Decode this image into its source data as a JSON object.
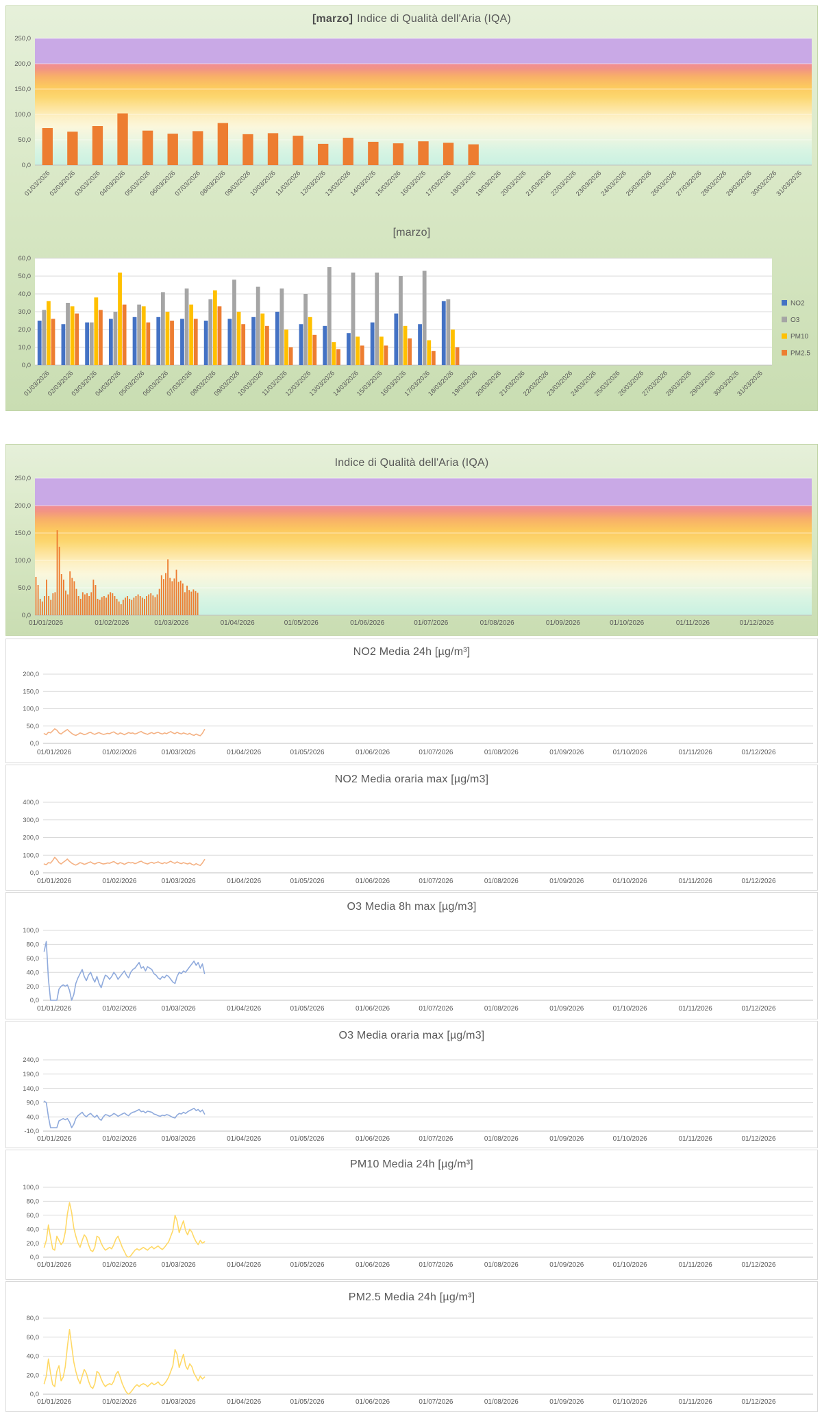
{
  "months": [
    "01/01/2026",
    "01/02/2026",
    "01/03/2026",
    "01/04/2026",
    "01/05/2026",
    "01/06/2026",
    "01/07/2026",
    "01/08/2026",
    "01/09/2026",
    "01/10/2026",
    "01/11/2026",
    "01/12/2026"
  ],
  "iqa_gradient_stops": [
    [
      "0%",
      "#c9a9e6"
    ],
    [
      "19.7%",
      "#c9a9e6"
    ],
    [
      "20.3%",
      "#f08d95"
    ],
    [
      "24%",
      "#f29384"
    ],
    [
      "30%",
      "#f8b068"
    ],
    [
      "38%",
      "#fcc95f"
    ],
    [
      "46%",
      "#fcd66e"
    ],
    [
      "54%",
      "#fde39a"
    ],
    [
      "62%",
      "#fdf0c4"
    ],
    [
      "70%",
      "#fbf7dc"
    ],
    [
      "78%",
      "#eef6e0"
    ],
    [
      "88%",
      "#d9f4e3"
    ],
    [
      "100%",
      "#c9f1e1"
    ]
  ],
  "chart_data": [
    {
      "id": "iqa_marzo",
      "type": "bar",
      "title_prefix": "[marzo]",
      "title": "Indice di Qualità dell'Aria (IQA)",
      "categories": [
        "01/03/2026",
        "02/03/2026",
        "03/03/2026",
        "04/03/2026",
        "05/03/2026",
        "06/03/2026",
        "07/03/2026",
        "08/03/2026",
        "09/03/2026",
        "10/03/2026",
        "11/03/2026",
        "12/03/2026",
        "13/03/2026",
        "14/03/2026",
        "15/03/2026",
        "16/03/2026",
        "17/03/2026",
        "18/03/2026",
        "19/03/2026",
        "20/03/2026",
        "21/03/2026",
        "22/03/2026",
        "23/03/2026",
        "24/03/2026",
        "25/03/2026",
        "26/03/2026",
        "27/03/2026",
        "28/03/2026",
        "29/03/2026",
        "30/03/2026",
        "31/03/2026"
      ],
      "values": [
        73,
        66,
        77,
        102,
        68,
        62,
        67,
        83,
        61,
        63,
        58,
        42,
        54,
        46,
        43,
        47,
        44,
        41
      ],
      "bar_color": "#ED7D31",
      "background": "iqa-gradient",
      "ylim": [
        0,
        250
      ],
      "yticks": [
        {
          "v": 0,
          "label": "0,0"
        },
        {
          "v": 50,
          "label": "50,0"
        },
        {
          "v": 100,
          "label": "100,0"
        },
        {
          "v": 150,
          "label": "150,0"
        },
        {
          "v": 200,
          "label": "200,0"
        },
        {
          "v": 250,
          "label": "250,0"
        }
      ],
      "xlabel_mode": "rotated"
    },
    {
      "id": "marzo_groups",
      "type": "grouped-bar",
      "title": "[marzo]",
      "categories": [
        "01/03/2026",
        "02/03/2026",
        "03/03/2026",
        "04/03/2026",
        "05/03/2026",
        "06/03/2026",
        "07/03/2026",
        "08/03/2026",
        "09/03/2026",
        "10/03/2026",
        "11/03/2026",
        "12/03/2026",
        "13/03/2026",
        "14/03/2026",
        "15/03/2026",
        "16/03/2026",
        "17/03/2026",
        "18/03/2026",
        "19/03/2026",
        "20/03/2026",
        "21/03/2026",
        "22/03/2026",
        "23/03/2026",
        "24/03/2026",
        "25/03/2026",
        "26/03/2026",
        "27/03/2026",
        "28/03/2026",
        "29/03/2026",
        "30/03/2026",
        "31/03/2026"
      ],
      "series": [
        {
          "name": "NO2",
          "color": "#4472C4",
          "values": [
            25,
            23,
            24,
            26,
            27,
            27,
            26,
            25,
            26,
            27,
            30,
            23,
            22,
            18,
            24,
            29,
            23,
            36
          ]
        },
        {
          "name": "O3",
          "color": "#A5A5A5",
          "values": [
            31,
            35,
            24,
            30,
            34,
            41,
            43,
            37,
            48,
            44,
            43,
            40,
            55,
            52,
            52,
            50,
            53,
            37
          ]
        },
        {
          "name": "PM10",
          "color": "#FFC000",
          "values": [
            36,
            33,
            38,
            52,
            33,
            30,
            34,
            42,
            30,
            29,
            20,
            27,
            13,
            16,
            16,
            22,
            14,
            20
          ]
        },
        {
          "name": "PM2.5",
          "color": "#ED7D31",
          "values": [
            26,
            29,
            31,
            34,
            24,
            25,
            26,
            33,
            23,
            22,
            10,
            17,
            9,
            11,
            11,
            15,
            8,
            10
          ]
        }
      ],
      "background": "white",
      "legend_position": "right",
      "ylim": [
        0,
        60
      ],
      "yticks": [
        {
          "v": 0,
          "label": "0,0"
        },
        {
          "v": 10,
          "label": "10,0"
        },
        {
          "v": 20,
          "label": "20,0"
        },
        {
          "v": 30,
          "label": "30,0"
        },
        {
          "v": 40,
          "label": "40,0"
        },
        {
          "v": 50,
          "label": "50,0"
        },
        {
          "v": 60,
          "label": "60,0"
        }
      ],
      "xlabel_mode": "rotated"
    },
    {
      "id": "iqa_year",
      "type": "daily-bar",
      "title": "Indice di Qualità dell'Aria (IQA)",
      "bar_color": "#ED7D31",
      "background": "iqa-gradient",
      "days_in_axis": 365,
      "values": [
        70,
        55,
        30,
        25,
        35,
        65,
        35,
        28,
        40,
        42,
        155,
        125,
        75,
        65,
        45,
        38,
        80,
        68,
        62,
        48,
        35,
        30,
        42,
        38,
        40,
        35,
        42,
        65,
        55,
        30,
        28,
        33,
        35,
        32,
        38,
        42,
        40,
        35,
        30,
        25,
        20,
        28,
        32,
        35,
        30,
        28,
        32,
        35,
        38,
        35,
        32,
        30,
        35,
        38,
        40,
        36,
        33,
        38,
        48,
        73,
        66,
        77,
        102,
        68,
        62,
        67,
        83,
        61,
        63,
        58,
        42,
        54,
        46,
        43,
        47,
        44,
        41
      ],
      "ylim": [
        0,
        250
      ],
      "yticks": [
        {
          "v": 0,
          "label": "0,0"
        },
        {
          "v": 50,
          "label": "50,0"
        },
        {
          "v": 100,
          "label": "100,0"
        },
        {
          "v": 150,
          "label": "150,0"
        },
        {
          "v": 200,
          "label": "200,0"
        },
        {
          "v": 250,
          "label": "250,0"
        }
      ],
      "xlabel_mode": "monthly"
    },
    {
      "id": "no2_24h",
      "type": "line",
      "title": "NO2 Media 24h [µg/m³]",
      "line_color": "#F4B183",
      "background": "plain",
      "days_in_axis": 365,
      "values": [
        28,
        25,
        32,
        30,
        36,
        42,
        38,
        30,
        27,
        32,
        36,
        40,
        34,
        29,
        25,
        23,
        26,
        30,
        28,
        25,
        27,
        30,
        32,
        28,
        26,
        29,
        31,
        28,
        26,
        27,
        29,
        28,
        31,
        33,
        29,
        26,
        30,
        28,
        25,
        28,
        31,
        29,
        30,
        27,
        29,
        32,
        34,
        30,
        28,
        26,
        29,
        31,
        28,
        30,
        32,
        29,
        27,
        30,
        28,
        31,
        34,
        30,
        28,
        32,
        29,
        27,
        30,
        28,
        26,
        29,
        25,
        23,
        27,
        24,
        22,
        29,
        40
      ],
      "ylim": [
        0,
        200
      ],
      "yticks": [
        {
          "v": 0,
          "label": "0,0"
        },
        {
          "v": 50,
          "label": "50,0"
        },
        {
          "v": 100,
          "label": "100,0"
        },
        {
          "v": 150,
          "label": "150,0"
        },
        {
          "v": 200,
          "label": "200,0"
        }
      ],
      "xlabel_mode": "monthly"
    },
    {
      "id": "no2_max",
      "type": "line",
      "title": "NO2 Media oraria max [µg/m3]",
      "line_color": "#F4B183",
      "background": "plain",
      "days_in_axis": 365,
      "values": [
        50,
        46,
        58,
        55,
        70,
        88,
        75,
        58,
        50,
        60,
        68,
        78,
        65,
        55,
        48,
        44,
        50,
        58,
        54,
        48,
        52,
        58,
        62,
        54,
        50,
        56,
        60,
        54,
        50,
        52,
        56,
        54,
        60,
        64,
        56,
        50,
        58,
        54,
        48,
        54,
        60,
        56,
        58,
        52,
        56,
        62,
        66,
        58,
        54,
        50,
        56,
        60,
        54,
        58,
        62,
        56,
        52,
        58,
        54,
        60,
        66,
        58,
        54,
        62,
        56,
        52,
        58,
        54,
        50,
        56,
        48,
        44,
        52,
        46,
        42,
        56,
        75
      ],
      "ylim": [
        0,
        400
      ],
      "yticks": [
        {
          "v": 0,
          "label": "0,0"
        },
        {
          "v": 100,
          "label": "100,0"
        },
        {
          "v": 200,
          "label": "200,0"
        },
        {
          "v": 300,
          "label": "300,0"
        },
        {
          "v": 400,
          "label": "400,0"
        }
      ],
      "xlabel_mode": "monthly"
    },
    {
      "id": "o3_8h",
      "type": "line",
      "title": "O3 Media 8h max [µg/m3]",
      "line_color": "#8FAADC",
      "background": "plain",
      "days_in_axis": 365,
      "values": [
        70,
        84,
        30,
        0,
        0,
        0,
        0,
        16,
        20,
        22,
        20,
        22,
        14,
        0,
        8,
        24,
        32,
        38,
        44,
        34,
        28,
        36,
        40,
        32,
        26,
        34,
        24,
        18,
        28,
        36,
        34,
        30,
        34,
        40,
        36,
        30,
        34,
        38,
        42,
        36,
        32,
        40,
        44,
        46,
        50,
        54,
        46,
        48,
        42,
        48,
        46,
        44,
        38,
        36,
        32,
        30,
        34,
        32,
        36,
        34,
        30,
        26,
        24,
        34,
        40,
        38,
        42,
        40,
        44,
        48,
        52,
        56,
        50,
        54,
        46,
        52,
        38
      ],
      "ylim": [
        0,
        100
      ],
      "yticks": [
        {
          "v": 0,
          "label": "0,0"
        },
        {
          "v": 20,
          "label": "20,0"
        },
        {
          "v": 40,
          "label": "40,0"
        },
        {
          "v": 60,
          "label": "60,0"
        },
        {
          "v": 80,
          "label": "80,0"
        },
        {
          "v": 100,
          "label": "100,0"
        }
      ],
      "xlabel_mode": "monthly"
    },
    {
      "id": "o3_max",
      "type": "line",
      "title": "O3 Media oraria max [µg/m3]",
      "line_color": "#8FAADC",
      "background": "plain",
      "days_in_axis": 365,
      "values": [
        95,
        90,
        40,
        2,
        2,
        2,
        2,
        26,
        30,
        34,
        30,
        34,
        22,
        2,
        14,
        34,
        44,
        50,
        56,
        46,
        40,
        48,
        52,
        44,
        38,
        46,
        34,
        28,
        40,
        48,
        46,
        42,
        46,
        52,
        48,
        42,
        46,
        50,
        54,
        48,
        44,
        52,
        56,
        58,
        62,
        66,
        58,
        60,
        54,
        60,
        58,
        56,
        50,
        48,
        44,
        42,
        46,
        44,
        48,
        46,
        42,
        38,
        36,
        46,
        52,
        50,
        56,
        52,
        58,
        62,
        66,
        70,
        62,
        66,
        58,
        64,
        50
      ],
      "ylim": [
        -10,
        240
      ],
      "yticks": [
        {
          "v": -10,
          "label": "-10,0"
        },
        {
          "v": 40,
          "label": "40,0"
        },
        {
          "v": 90,
          "label": "90,0"
        },
        {
          "v": 140,
          "label": "140,0"
        },
        {
          "v": 190,
          "label": "190,0"
        },
        {
          "v": 240,
          "label": "240,0"
        }
      ],
      "xlabel_mode": "monthly"
    },
    {
      "id": "pm10_24h",
      "type": "line",
      "title": "PM10 Media 24h [µg/m³]",
      "line_color": "#FFD966",
      "background": "plain",
      "days_in_axis": 365,
      "values": [
        14,
        24,
        46,
        28,
        12,
        10,
        30,
        24,
        18,
        22,
        36,
        62,
        78,
        64,
        42,
        30,
        20,
        14,
        24,
        32,
        28,
        18,
        10,
        8,
        14,
        30,
        28,
        20,
        14,
        10,
        12,
        14,
        12,
        18,
        26,
        30,
        22,
        14,
        8,
        2,
        0,
        2,
        6,
        10,
        12,
        10,
        12,
        14,
        12,
        10,
        13,
        15,
        12,
        14,
        16,
        13,
        11,
        14,
        18,
        22,
        30,
        38,
        60,
        52,
        35,
        44,
        52,
        38,
        32,
        40,
        36,
        28,
        22,
        18,
        24,
        20,
        22
      ],
      "ylim": [
        0,
        100
      ],
      "yticks": [
        {
          "v": 0,
          "label": "0,0"
        },
        {
          "v": 20,
          "label": "20,0"
        },
        {
          "v": 40,
          "label": "40,0"
        },
        {
          "v": 60,
          "label": "60,0"
        },
        {
          "v": 80,
          "label": "80,0"
        },
        {
          "v": 100,
          "label": "100,0"
        }
      ],
      "xlabel_mode": "monthly"
    },
    {
      "id": "pm25_24h",
      "type": "line",
      "title": "PM2.5 Media 24h [µg/m³]",
      "line_color": "#FFD966",
      "background": "plain",
      "days_in_axis": 365,
      "values": [
        11,
        19,
        37,
        22,
        10,
        8,
        24,
        30,
        14,
        18,
        29,
        50,
        68,
        51,
        34,
        24,
        16,
        11,
        19,
        26,
        22,
        14,
        8,
        6,
        11,
        24,
        22,
        16,
        11,
        8,
        10,
        11,
        10,
        14,
        21,
        24,
        18,
        11,
        6,
        2,
        0,
        2,
        5,
        8,
        10,
        8,
        10,
        11,
        10,
        8,
        10,
        12,
        10,
        11,
        13,
        10,
        9,
        11,
        14,
        18,
        24,
        30,
        47,
        42,
        28,
        35,
        42,
        30,
        26,
        32,
        29,
        22,
        18,
        14,
        19,
        16,
        18
      ],
      "ylim": [
        0,
        80
      ],
      "yticks": [
        {
          "v": 0,
          "label": "0,0"
        },
        {
          "v": 20,
          "label": "20,0"
        },
        {
          "v": 40,
          "label": "40,0"
        },
        {
          "v": 60,
          "label": "60,0"
        },
        {
          "v": 80,
          "label": "80,0"
        }
      ],
      "xlabel_mode": "monthly"
    }
  ]
}
